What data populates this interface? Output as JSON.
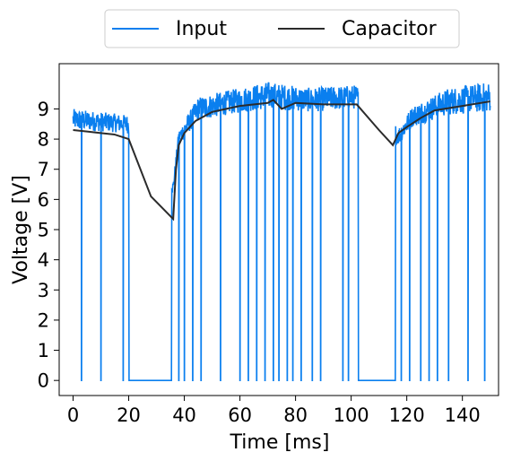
{
  "chart_data": {
    "type": "line",
    "xlabel": "Time [ms]",
    "ylabel": "Voltage [V]",
    "xlim": [
      -5,
      153
    ],
    "ylim": [
      -0.5,
      10.5
    ],
    "x_ticks": [
      0,
      20,
      40,
      60,
      80,
      100,
      120,
      140
    ],
    "y_ticks": [
      0,
      1,
      2,
      3,
      4,
      5,
      6,
      7,
      8,
      9
    ],
    "grid": false,
    "legend_placement": "top-center, outside above plot, 2 columns",
    "series": [
      {
        "name": "Input",
        "color": "#0a7fef",
        "description": "noisy PWM-like signal with dropouts to 0 V",
        "dropout_times": [
          3,
          10,
          18,
          38,
          40,
          43,
          46,
          53,
          60,
          63,
          66,
          69,
          72,
          74,
          77,
          79,
          82,
          86,
          89,
          97,
          99,
          118,
          121,
          125,
          128,
          131,
          135,
          142,
          148
        ],
        "off_intervals": [
          [
            20,
            35.5
          ],
          [
            102.5,
            116
          ]
        ],
        "envelope": [
          [
            0,
            8.3,
            9.0
          ],
          [
            10,
            8.25,
            8.9
          ],
          [
            19.5,
            8.2,
            8.8
          ],
          [
            36,
            6.2,
            6.6
          ],
          [
            38,
            7.8,
            8.3
          ],
          [
            45,
            8.6,
            9.4
          ],
          [
            55,
            8.8,
            9.6
          ],
          [
            70,
            9.0,
            9.9
          ],
          [
            85,
            8.9,
            9.7
          ],
          [
            102,
            9.0,
            9.8
          ],
          [
            117,
            7.8,
            8.4
          ],
          [
            122,
            8.4,
            9.1
          ],
          [
            135,
            8.8,
            9.7
          ],
          [
            150,
            8.9,
            9.9
          ]
        ]
      },
      {
        "name": "Capacitor",
        "color": "#2b2b2b",
        "x": [
          0,
          5,
          10,
          15,
          20,
          28,
          36,
          37,
          38,
          40,
          44,
          50,
          60,
          70,
          72,
          75,
          80,
          90,
          100,
          102,
          110,
          115,
          117,
          120,
          125,
          130,
          140,
          150
        ],
        "y": [
          8.3,
          8.25,
          8.2,
          8.15,
          8.0,
          6.1,
          5.35,
          7.0,
          7.8,
          8.2,
          8.6,
          8.9,
          9.1,
          9.2,
          9.3,
          9.0,
          9.2,
          9.15,
          9.15,
          9.15,
          8.3,
          7.8,
          8.2,
          8.4,
          8.7,
          8.95,
          9.1,
          9.25
        ]
      }
    ]
  }
}
